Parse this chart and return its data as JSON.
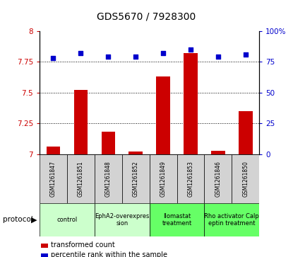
{
  "title": "GDS5670 / 7928300",
  "samples": [
    "GSM1261847",
    "GSM1261851",
    "GSM1261848",
    "GSM1261852",
    "GSM1261849",
    "GSM1261853",
    "GSM1261846",
    "GSM1261850"
  ],
  "transformed_count": [
    7.06,
    7.52,
    7.18,
    7.02,
    7.63,
    7.82,
    7.03,
    7.35
  ],
  "percentile_rank": [
    78,
    82,
    79,
    79,
    82,
    85,
    79,
    81
  ],
  "protocols": [
    {
      "label": "control",
      "span": [
        0,
        2
      ],
      "color": "#ccffcc"
    },
    {
      "label": "EphA2-overexpres\nsion",
      "span": [
        2,
        4
      ],
      "color": "#ccffcc"
    },
    {
      "label": "Ilomastat\ntreatment",
      "span": [
        4,
        6
      ],
      "color": "#66ff66"
    },
    {
      "label": "Rho activator Calp\neptin treatment",
      "span": [
        6,
        8
      ],
      "color": "#66ff66"
    }
  ],
  "ylim_left": [
    7.0,
    8.0
  ],
  "ylim_right": [
    0,
    100
  ],
  "yticks_left": [
    7.0,
    7.25,
    7.5,
    7.75,
    8.0
  ],
  "yticks_left_labels": [
    "7",
    "7.25",
    "7.5",
    "7.75",
    "8"
  ],
  "yticks_right": [
    0,
    25,
    50,
    75,
    100
  ],
  "yticks_right_labels": [
    "0",
    "25",
    "50",
    "75",
    "100%"
  ],
  "bar_color": "#cc0000",
  "dot_color": "#0000cc",
  "bar_width": 0.5,
  "dot_size": 25,
  "grid_lines": [
    7.25,
    7.5,
    7.75
  ],
  "bg_color": "#ffffff",
  "sample_box_color": "#d3d3d3",
  "legend_items": [
    {
      "label": "transformed count",
      "color": "#cc0000"
    },
    {
      "label": "percentile rank within the sample",
      "color": "#0000cc"
    }
  ]
}
